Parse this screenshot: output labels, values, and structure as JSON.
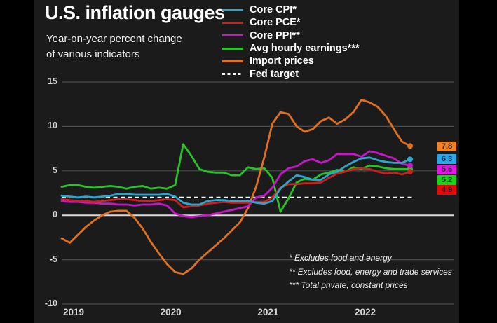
{
  "title": "U.S. inflation gauges",
  "subtitle_line1": "Year-on-year percent change",
  "subtitle_line2": "of various indicators",
  "legend": {
    "items": [
      {
        "label": "Core CPI*",
        "color": "#2ba6cc",
        "dashed": false
      },
      {
        "label": "Core PCE*",
        "color": "#cc2121",
        "dashed": false
      },
      {
        "label": "Core PPI**",
        "color": "#c617c6",
        "dashed": false
      },
      {
        "label": "Avg hourly earnings***",
        "color": "#26c426",
        "dashed": false
      },
      {
        "label": "Import prices",
        "color": "#e0701d",
        "dashed": false
      },
      {
        "label": "Fed target",
        "color": "#ffffff",
        "dashed": true
      }
    ]
  },
  "footnotes": [
    "* Excludes food and energy",
    "** Excludes food, energy and trade services",
    "*** Total private, constant prices"
  ],
  "chart_data": {
    "type": "line",
    "x_unit": "month",
    "x_start": "2019-01",
    "x_end": "2022-08",
    "n_points": 44,
    "ylim": [
      -10,
      15
    ],
    "y_ticks": [
      15,
      10,
      5,
      0,
      -5,
      -10
    ],
    "zero_line_highlighted": true,
    "x_ticks": [
      {
        "label": "2019",
        "index": 0
      },
      {
        "label": "2020",
        "index": 12
      },
      {
        "label": "2021",
        "index": 24
      },
      {
        "label": "2022",
        "index": 36
      }
    ],
    "series": [
      {
        "name": "Avg hourly earnings***",
        "color": "#26c426",
        "end_value": 5.2,
        "values": [
          3.2,
          3.4,
          3.4,
          3.2,
          3.1,
          3.2,
          3.3,
          3.2,
          3.0,
          3.2,
          3.3,
          3.0,
          3.1,
          3.0,
          3.4,
          8.0,
          6.7,
          5.2,
          4.9,
          4.8,
          4.8,
          4.5,
          4.5,
          5.4,
          5.2,
          5.3,
          4.2,
          0.4,
          1.9,
          3.7,
          4.1,
          4.0,
          4.6,
          4.8,
          5.1,
          4.9,
          5.4,
          5.2,
          5.6,
          5.5,
          5.3,
          5.2,
          5.2,
          5.2
        ]
      },
      {
        "name": "Import prices",
        "color": "#e0701d",
        "end_value": 7.8,
        "values": [
          -2.6,
          -3.1,
          -2.2,
          -1.3,
          -0.6,
          0.0,
          0.4,
          0.5,
          0.5,
          -0.3,
          -1.5,
          -3.0,
          -4.3,
          -5.5,
          -6.4,
          -6.6,
          -6.0,
          -5.0,
          -4.2,
          -3.4,
          -2.6,
          -1.7,
          -0.8,
          0.8,
          3.2,
          6.5,
          10.3,
          11.6,
          11.4,
          10.0,
          9.4,
          9.7,
          10.6,
          11.0,
          10.3,
          10.8,
          11.6,
          13.0,
          12.7,
          12.2,
          11.2,
          9.7,
          8.3,
          7.8
        ]
      },
      {
        "name": "Core PPI**",
        "color": "#c617c6",
        "end_value": 5.6,
        "values": [
          1.6,
          1.5,
          1.5,
          1.4,
          1.4,
          1.3,
          1.3,
          1.2,
          1.2,
          1.1,
          1.2,
          1.2,
          1.3,
          1.1,
          0.2,
          -0.1,
          -0.2,
          -0.1,
          0.0,
          0.2,
          0.4,
          0.6,
          0.8,
          1.0,
          2.0,
          2.2,
          3.1,
          4.6,
          5.3,
          5.5,
          6.1,
          6.3,
          5.9,
          6.2,
          6.9,
          6.9,
          6.9,
          6.6,
          7.2,
          7.0,
          6.7,
          6.4,
          5.8,
          5.6
        ]
      },
      {
        "name": "Core PCE*",
        "color": "#cc2121",
        "end_value": 4.9,
        "values": [
          1.8,
          1.7,
          1.6,
          1.6,
          1.5,
          1.6,
          1.7,
          1.8,
          1.8,
          1.7,
          1.6,
          1.6,
          1.7,
          1.8,
          1.7,
          0.9,
          1.0,
          1.1,
          1.3,
          1.4,
          1.5,
          1.4,
          1.4,
          1.4,
          1.5,
          1.5,
          2.0,
          3.1,
          3.5,
          3.5,
          3.6,
          3.6,
          3.7,
          4.2,
          4.7,
          4.9,
          5.2,
          5.3,
          5.2,
          4.9,
          4.7,
          4.8,
          4.6,
          4.9
        ]
      },
      {
        "name": "Core CPI*",
        "color": "#2ba6cc",
        "end_value": 6.3,
        "values": [
          2.2,
          2.1,
          2.0,
          2.1,
          2.0,
          2.1,
          2.2,
          2.4,
          2.4,
          2.3,
          2.3,
          2.3,
          2.3,
          2.4,
          2.1,
          1.4,
          1.2,
          1.2,
          1.6,
          1.7,
          1.7,
          1.6,
          1.6,
          1.6,
          1.4,
          1.3,
          1.6,
          3.0,
          3.8,
          4.5,
          4.3,
          4.0,
          4.0,
          4.6,
          4.9,
          5.5,
          6.0,
          6.4,
          6.5,
          6.2,
          6.0,
          5.9,
          5.9,
          6.3
        ]
      }
    ],
    "reference_line": {
      "name": "Fed target",
      "value": 2,
      "style": "dashed",
      "color": "#ffffff"
    },
    "end_labels": [
      {
        "value": "7.8",
        "color": "#f58020",
        "series": "Import prices"
      },
      {
        "value": "6.3",
        "color": "#29a7e8",
        "series": "Core CPI*"
      },
      {
        "value": "5.6",
        "color": "#ea14ea",
        "series": "Core PPI**"
      },
      {
        "value": "5.2",
        "color": "#18d418",
        "series": "Avg hourly earnings***"
      },
      {
        "value": "4.9",
        "color": "#e80606",
        "series": "Core PCE*"
      }
    ],
    "legend_position": "top-right",
    "grid": "horizontal-only"
  }
}
